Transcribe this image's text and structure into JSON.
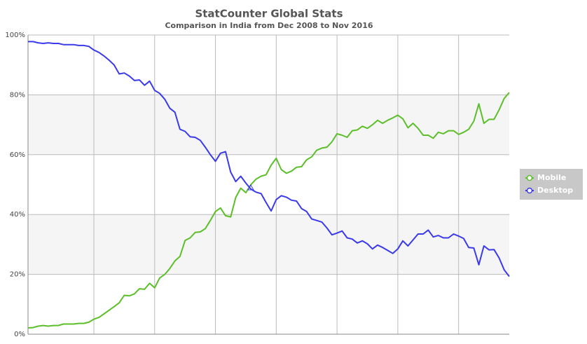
{
  "chart_data": {
    "type": "line",
    "title": "StatCounter Global Stats",
    "subtitle": "Comparison in India from Dec 2008 to Nov 2016",
    "categories": [
      null,
      null,
      null,
      null,
      null,
      null,
      null,
      null,
      null,
      null,
      null,
      null,
      null,
      null,
      null,
      null,
      null,
      null,
      null,
      null,
      null,
      null,
      null,
      null,
      null,
      null,
      null,
      null,
      null,
      null,
      null,
      null,
      null,
      null,
      null,
      null,
      null,
      null,
      null,
      null,
      null,
      null,
      null,
      null,
      null,
      null,
      null,
      null,
      null,
      null,
      null,
      null,
      null,
      null,
      null,
      null,
      null,
      null,
      null,
      null,
      null,
      null,
      null,
      null,
      null,
      null,
      null,
      null,
      null,
      null,
      null,
      null,
      null,
      null,
      null,
      null,
      null,
      null,
      null,
      null,
      null,
      null,
      null,
      null,
      null,
      null,
      null,
      null,
      null,
      null,
      null,
      null,
      null,
      null,
      null,
      null
    ],
    "series": [
      {
        "name": "Mobile",
        "color": "#5cbf2a",
        "values": [
          2.1,
          2.2,
          2.7,
          2.9,
          2.7,
          2.9,
          2.9,
          3.4,
          3.4,
          3.4,
          3.6,
          3.6,
          4.0,
          5.0,
          5.6,
          6.8,
          8.0,
          9.2,
          10.5,
          13.0,
          12.8,
          13.5,
          15.2,
          15.0,
          17.0,
          15.5,
          18.8,
          20.0,
          22.0,
          24.5,
          26.0,
          31.3,
          32.2,
          34.0,
          34.2,
          35.3,
          38.0,
          41.0,
          42.2,
          39.6,
          39.2,
          45.7,
          48.8,
          47.3,
          50.0,
          51.8,
          52.8,
          53.3,
          56.5,
          58.8,
          55.0,
          53.8,
          54.5,
          55.8,
          56.0,
          58.3,
          59.3,
          61.5,
          62.2,
          62.5,
          64.3,
          67.0,
          66.5,
          65.8,
          68.0,
          68.3,
          69.5,
          68.8,
          70.0,
          71.5,
          70.5,
          71.5,
          72.3,
          73.2,
          72.0,
          69.0,
          70.5,
          68.8,
          66.5,
          66.5,
          65.5,
          67.5,
          67.0,
          68.0,
          68.0,
          66.8,
          67.5,
          68.5,
          71.2,
          77.0,
          70.5,
          71.8,
          71.8,
          75.0,
          78.8,
          80.8
        ]
      },
      {
        "name": "Desktop",
        "color": "#3a3aeb",
        "values": [
          97.8,
          97.8,
          97.4,
          97.2,
          97.4,
          97.2,
          97.2,
          96.8,
          96.8,
          96.8,
          96.5,
          96.5,
          96.2,
          95.0,
          94.2,
          93.0,
          91.6,
          90.0,
          87.0,
          87.3,
          86.3,
          84.8,
          85.0,
          83.2,
          84.6,
          81.5,
          80.5,
          78.5,
          75.5,
          74.2,
          68.5,
          67.8,
          66.0,
          65.8,
          64.8,
          62.5,
          60.0,
          57.8,
          60.5,
          61.0,
          54.2,
          51.0,
          52.8,
          50.5,
          48.5,
          47.5,
          47.0,
          44.0,
          41.2,
          45.0,
          46.3,
          45.8,
          44.8,
          44.5,
          42.0,
          41.0,
          38.5,
          38.0,
          37.5,
          35.5,
          33.2,
          33.8,
          34.5,
          32.2,
          31.8,
          30.5,
          31.2,
          30.2,
          28.5,
          29.8,
          29.0,
          28.0,
          27.0,
          28.5,
          31.2,
          29.5,
          31.5,
          33.5,
          33.5,
          34.8,
          32.5,
          33.0,
          32.2,
          32.2,
          33.5,
          32.8,
          32.0,
          29.0,
          28.8,
          23.2,
          29.5,
          28.2,
          28.3,
          25.5,
          21.5,
          19.3
        ]
      }
    ],
    "ylim": [
      0,
      100
    ],
    "yticks": [
      {
        "value": 0,
        "label": "0%"
      },
      {
        "value": 20,
        "label": "20%"
      },
      {
        "value": 40,
        "label": "40%"
      },
      {
        "value": 60,
        "label": "60%"
      },
      {
        "value": 80,
        "label": "80%"
      },
      {
        "value": 100,
        "label": "100%"
      }
    ],
    "grid": true,
    "legend": "right"
  }
}
